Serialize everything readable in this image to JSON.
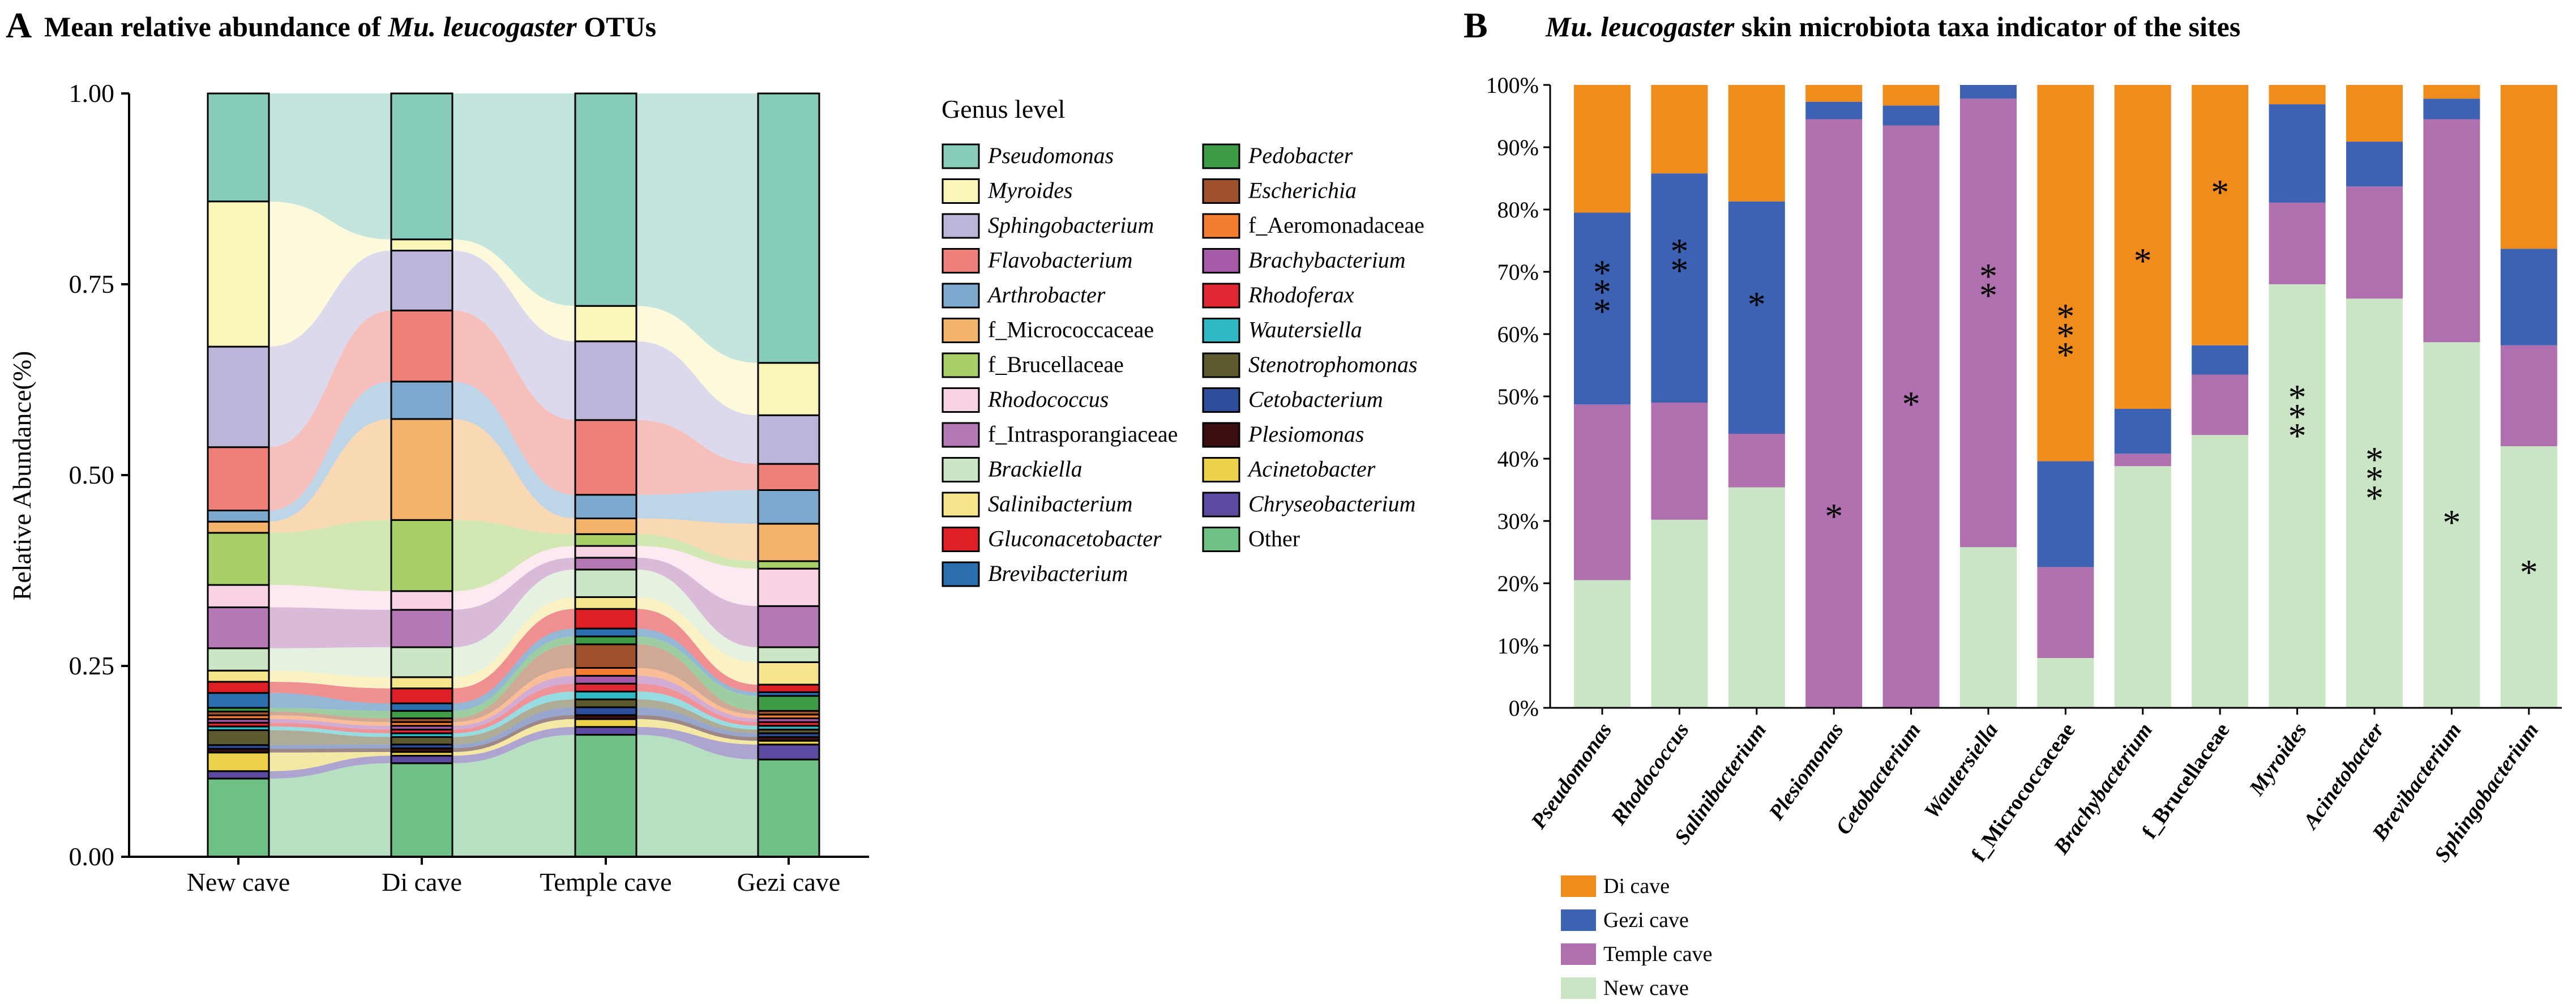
{
  "panel_a": {
    "letter": "A",
    "title_prefix": "Mean relative abundance of ",
    "title_species": "Mu. leucogaster",
    "title_suffix": " OTUs",
    "legend_title": "Genus level"
  },
  "panel_b": {
    "letter": "B",
    "title_species": "Mu. leucogaster",
    "title_suffix": " skin microbiota taxa indicator of the sites"
  },
  "chart_data": [
    {
      "type": "area",
      "subtype": "stacked-bar-alluvial",
      "title": "Mean relative abundance of Mu. leucogaster OTUs",
      "xlabel": "",
      "ylabel": "Relative Abundance(%)",
      "ylim": [
        0,
        1
      ],
      "yticks": [
        "0.00",
        "0.25",
        "0.50",
        "0.75",
        "1.00"
      ],
      "categories": [
        "New cave",
        "Di cave",
        "Temple cave",
        "Gezi cave"
      ],
      "legend_title": "Genus level",
      "series": [
        {
          "name": "Other",
          "italic": false,
          "color": "#70c186",
          "values": [
            0.105,
            0.125,
            0.155,
            0.13
          ]
        },
        {
          "name": "Chryseobacterium",
          "italic": true,
          "color": "#5b4aa0",
          "values": [
            0.01,
            0.01,
            0.01,
            0.02
          ]
        },
        {
          "name": "Acinetobacter",
          "italic": true,
          "color": "#ecd24a",
          "values": [
            0.025,
            0.005,
            0.01,
            0.005
          ]
        },
        {
          "name": "Plesiomonas",
          "italic": true,
          "color": "#3b0f0f",
          "values": [
            0.005,
            0.005,
            0.005,
            0.005
          ]
        },
        {
          "name": "Cetobacterium",
          "italic": true,
          "color": "#2e4d9a",
          "values": [
            0.005,
            0.005,
            0.01,
            0.005
          ]
        },
        {
          "name": "Stenotrophomonas",
          "italic": true,
          "color": "#5d5a30",
          "values": [
            0.02,
            0.01,
            0.01,
            0.005
          ]
        },
        {
          "name": "Wautersiella",
          "italic": true,
          "color": "#2fb9c4",
          "values": [
            0.005,
            0.005,
            0.01,
            0.005
          ]
        },
        {
          "name": "Rhodoferax",
          "italic": true,
          "color": "#e02834",
          "values": [
            0.005,
            0.005,
            0.01,
            0.005
          ]
        },
        {
          "name": "Brachybacterium",
          "italic": true,
          "color": "#a65aa7",
          "values": [
            0.005,
            0.005,
            0.01,
            0.005
          ]
        },
        {
          "name": "f_Aeromonadaceae",
          "italic": false,
          "color": "#f47d30",
          "values": [
            0.005,
            0.005,
            0.01,
            0.005
          ]
        },
        {
          "name": "Escherichia",
          "italic": true,
          "color": "#a0522d",
          "values": [
            0.005,
            0.005,
            0.03,
            0.005
          ]
        },
        {
          "name": "Pedobacter",
          "italic": true,
          "color": "#3e9b46",
          "values": [
            0.005,
            0.01,
            0.01,
            0.02
          ]
        },
        {
          "name": "Brevibacterium",
          "italic": true,
          "color": "#2c6fae",
          "values": [
            0.02,
            0.01,
            0.01,
            0.005
          ]
        },
        {
          "name": "Gluconacetobacter",
          "italic": true,
          "color": "#df1f26",
          "values": [
            0.015,
            0.02,
            0.025,
            0.01
          ]
        },
        {
          "name": "Salinibacterium",
          "italic": true,
          "color": "#f6e58a",
          "values": [
            0.015,
            0.015,
            0.015,
            0.03
          ]
        },
        {
          "name": "Brackiella",
          "italic": true,
          "color": "#cbe6c4",
          "values": [
            0.03,
            0.04,
            0.035,
            0.02
          ]
        },
        {
          "name": "f_Intrasporangiaceae",
          "italic": false,
          "color": "#b478b4",
          "values": [
            0.055,
            0.05,
            0.015,
            0.055
          ]
        },
        {
          "name": "Rhodococcus",
          "italic": true,
          "color": "#f9d3e3",
          "values": [
            0.03,
            0.025,
            0.015,
            0.05
          ]
        },
        {
          "name": "f_Brucellaceae",
          "italic": false,
          "color": "#a8cf68",
          "values": [
            0.07,
            0.095,
            0.015,
            0.01
          ]
        },
        {
          "name": "f_Micrococcaceae",
          "italic": false,
          "color": "#f4b36a",
          "values": [
            0.015,
            0.135,
            0.02,
            0.05
          ]
        },
        {
          "name": "Arthrobacter",
          "italic": true,
          "color": "#7ea9cf",
          "values": [
            0.015,
            0.05,
            0.03,
            0.045
          ]
        },
        {
          "name": "Flavobacterium",
          "italic": true,
          "color": "#ee8079",
          "values": [
            0.085,
            0.095,
            0.095,
            0.035
          ]
        },
        {
          "name": "Sphingobacterium",
          "italic": true,
          "color": "#bcb4d9",
          "values": [
            0.135,
            0.08,
            0.1,
            0.065
          ]
        },
        {
          "name": "Myroides",
          "italic": true,
          "color": "#f9f6b7",
          "values": [
            0.195,
            0.015,
            0.045,
            0.07
          ]
        },
        {
          "name": "Pseudomonas",
          "italic": true,
          "color": "#87ccbb",
          "values": [
            0.145,
            0.195,
            0.27,
            0.36
          ]
        }
      ]
    },
    {
      "type": "bar",
      "subtype": "stacked-percent",
      "title": "Mu. leucogaster skin microbiota taxa indicator of the sites",
      "xlabel": "",
      "ylabel": "",
      "ylim": [
        0,
        100
      ],
      "yticks": [
        "0%",
        "10%",
        "20%",
        "30%",
        "40%",
        "50%",
        "60%",
        "70%",
        "80%",
        "90%",
        "100%"
      ],
      "categories": [
        "Pseudomonas",
        "Rhodococcus",
        "Salinibacterium",
        "Plesiomonas",
        "Cetobacterium",
        "Wautersiella",
        "f_Micrococcaceae",
        "Brachybacterium",
        "f_Brucellaceae",
        "Myroides",
        "Acinetobacter",
        "Brevibacterium",
        "Sphingobacterium"
      ],
      "category_italic": [
        true,
        true,
        true,
        true,
        true,
        true,
        false,
        true,
        false,
        true,
        true,
        true,
        true
      ],
      "legend_position": "bottom-left",
      "series": [
        {
          "name": "New cave",
          "color": "#c9e5c3",
          "values": [
            20.5,
            30.2,
            35.4,
            0,
            0,
            25.8,
            8.0,
            38.8,
            43.8,
            68.0,
            65.7,
            58.7,
            42.0
          ]
        },
        {
          "name": "Temple cave",
          "color": "#b070b0",
          "values": [
            28.2,
            18.8,
            8.6,
            94.5,
            93.5,
            72.0,
            14.6,
            2.0,
            9.7,
            13.1,
            18.0,
            35.8,
            16.2
          ]
        },
        {
          "name": "Gezi cave",
          "color": "#3d62b3",
          "values": [
            30.8,
            36.8,
            37.3,
            2.8,
            3.2,
            2.2,
            17.0,
            7.2,
            4.7,
            15.8,
            7.2,
            3.3,
            15.5
          ]
        },
        {
          "name": "Di cave",
          "color": "#f08c1c",
          "values": [
            20.5,
            14.2,
            18.7,
            2.7,
            3.3,
            0,
            60.4,
            52.0,
            41.8,
            3.1,
            9.1,
            2.2,
            26.3
          ]
        }
      ],
      "annotations": [
        {
          "category": "Pseudomonas",
          "text": "***",
          "y": 67
        },
        {
          "category": "Rhodococcus",
          "text": "**",
          "y": 72
        },
        {
          "category": "Salinibacterium",
          "text": "*",
          "y": 65
        },
        {
          "category": "Plesiomonas",
          "text": "*",
          "y": 31
        },
        {
          "category": "Cetobacterium",
          "text": "*",
          "y": 49
        },
        {
          "category": "Wautersiella",
          "text": "**",
          "y": 68
        },
        {
          "category": "f_Micrococcaceae",
          "text": "***",
          "y": 60
        },
        {
          "category": "Brachybacterium",
          "text": "*",
          "y": 72
        },
        {
          "category": "f_Brucellaceae",
          "text": "*",
          "y": 83
        },
        {
          "category": "Myroides",
          "text": "***",
          "y": 47
        },
        {
          "category": "Acinetobacter",
          "text": "***",
          "y": 37
        },
        {
          "category": "Brevibacterium",
          "text": "*",
          "y": 30
        },
        {
          "category": "Sphingobacterium",
          "text": "*",
          "y": 22
        }
      ]
    }
  ]
}
